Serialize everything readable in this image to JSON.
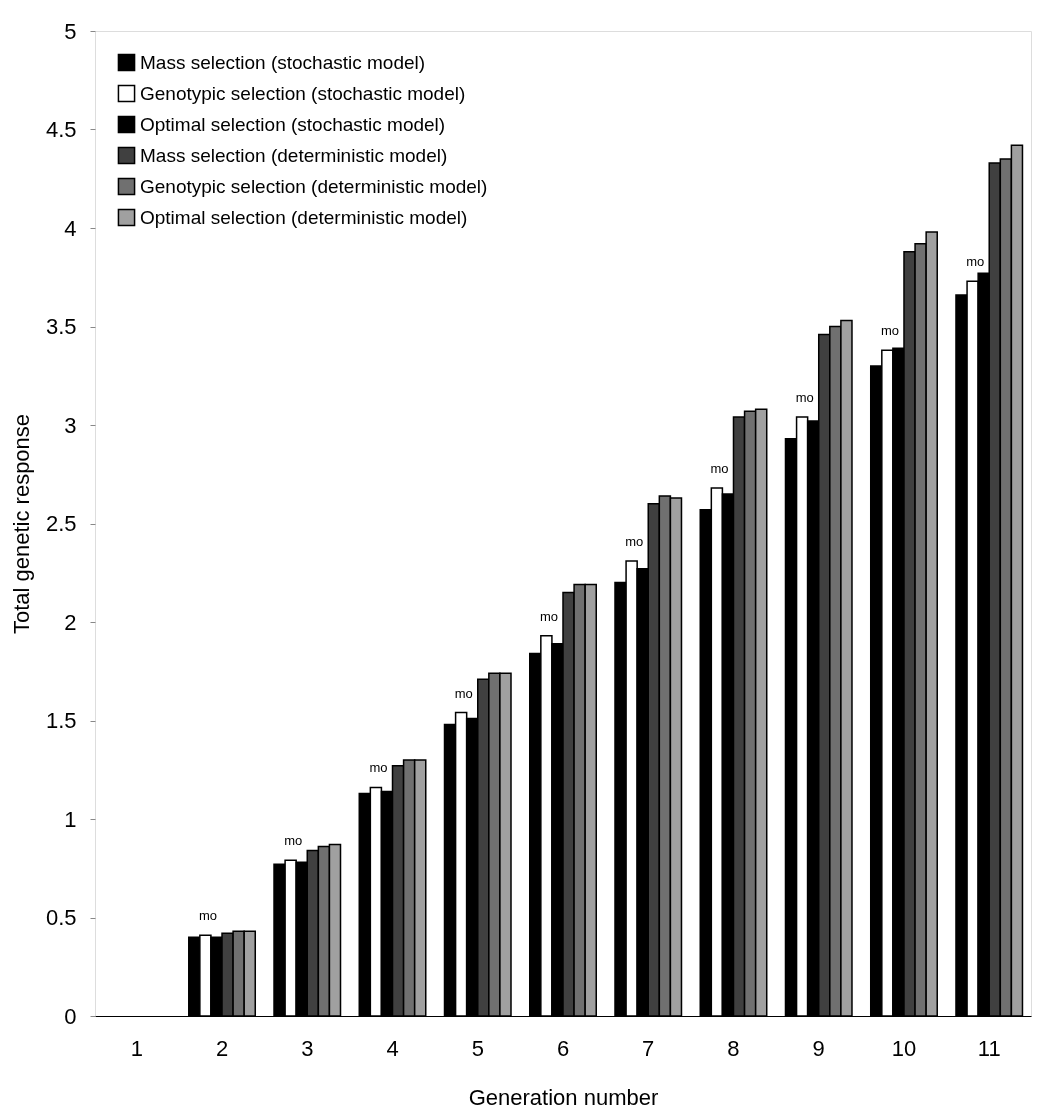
{
  "chart_data": {
    "type": "bar",
    "xlabel": "Generation number",
    "ylabel": "Total genetic response",
    "categories": [
      "1",
      "2",
      "3",
      "4",
      "5",
      "6",
      "7",
      "8",
      "9",
      "10",
      "11"
    ],
    "ylim": [
      0,
      5
    ],
    "yticks": [
      0,
      0.5,
      1,
      1.5,
      2,
      2.5,
      3,
      3.5,
      4,
      4.5,
      5
    ],
    "grid": false,
    "legend": "top left",
    "series": [
      {
        "name": "Mass selection (stochastic model)",
        "color": "#000000",
        "values": [
          null,
          0.4,
          0.77,
          1.13,
          1.48,
          1.84,
          2.2,
          2.57,
          2.93,
          3.3,
          3.66
        ]
      },
      {
        "name": "Genotypic selection (stochastic model)",
        "color": "#ffffff",
        "values": [
          null,
          0.41,
          0.79,
          1.16,
          1.54,
          1.93,
          2.31,
          2.68,
          3.04,
          3.38,
          3.73
        ]
      },
      {
        "name": "Optimal selection (stochastic model)",
        "color": "#000000",
        "values": [
          null,
          0.4,
          0.78,
          1.14,
          1.51,
          1.89,
          2.27,
          2.65,
          3.02,
          3.39,
          3.77
        ]
      },
      {
        "name": "Mass selection (deterministic model)",
        "color": "#404040",
        "values": [
          null,
          0.42,
          0.84,
          1.27,
          1.71,
          2.15,
          2.6,
          3.04,
          3.46,
          3.88,
          4.33
        ]
      },
      {
        "name": "Genotypic selection (deterministic model)",
        "color": "#707070",
        "values": [
          null,
          0.43,
          0.86,
          1.3,
          1.74,
          2.19,
          2.64,
          3.07,
          3.5,
          3.92,
          4.35
        ]
      },
      {
        "name": "Optimal  selection (deterministic model)",
        "color": "#a0a0a0",
        "values": [
          null,
          0.43,
          0.87,
          1.3,
          1.74,
          2.19,
          2.63,
          3.08,
          3.53,
          3.98,
          4.42
        ]
      }
    ],
    "annotations": [
      {
        "text": "mo",
        "x": "2",
        "y": 0.41
      },
      {
        "text": "mo",
        "x": "3",
        "y": 0.79
      },
      {
        "text": "mo",
        "x": "4",
        "y": 1.16
      },
      {
        "text": "mo",
        "x": "5",
        "y": 1.54
      },
      {
        "text": "mo",
        "x": "6",
        "y": 1.93
      },
      {
        "text": "mo",
        "x": "7",
        "y": 2.31
      },
      {
        "text": "mo",
        "x": "8",
        "y": 2.68
      },
      {
        "text": "mo",
        "x": "9",
        "y": 3.04
      },
      {
        "text": "mo",
        "x": "10",
        "y": 3.38
      },
      {
        "text": "mo",
        "x": "11",
        "y": 3.73
      }
    ]
  }
}
